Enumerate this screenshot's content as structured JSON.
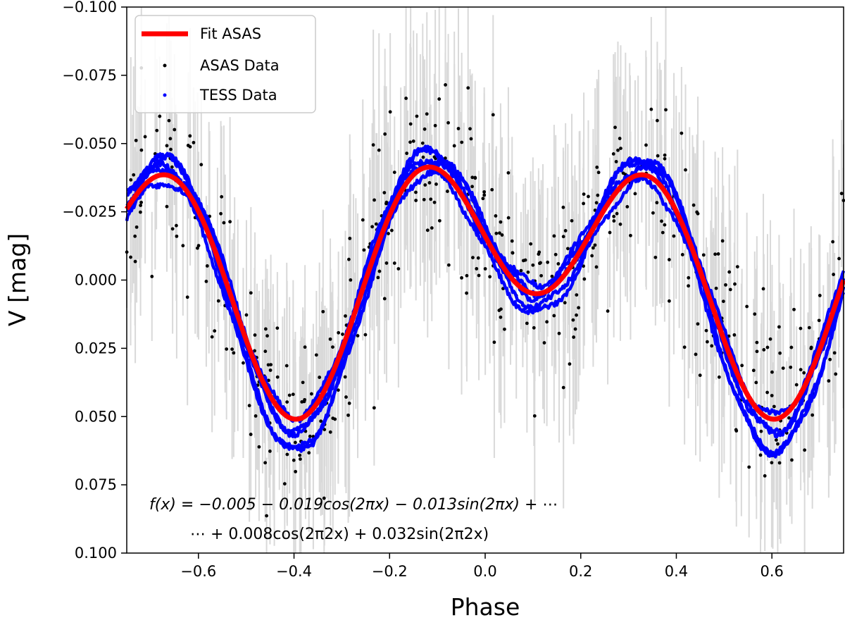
{
  "chart_data": {
    "type": "scatter",
    "title": "",
    "xlabel": "Phase",
    "ylabel": "V [mag]",
    "xlim": [
      -0.75,
      0.75
    ],
    "ylim": [
      0.1,
      -0.1
    ],
    "y_inverted": true,
    "x_ticks": [
      -0.6,
      -0.4,
      -0.2,
      0.0,
      0.2,
      0.4,
      0.6
    ],
    "x_tick_labels": [
      "−0.6",
      "−0.4",
      "−0.2",
      "0.0",
      "0.2",
      "0.4",
      "0.6"
    ],
    "y_ticks": [
      -0.1,
      -0.075,
      -0.05,
      -0.025,
      0.0,
      0.025,
      0.05,
      0.075,
      0.1
    ],
    "y_tick_labels": [
      "−0.100",
      "−0.075",
      "−0.050",
      "−0.025",
      "0.000",
      "0.025",
      "0.050",
      "0.075",
      "0.100"
    ],
    "legend_position": "top-left",
    "legend": [
      {
        "label": "Fit ASAS",
        "kind": "line",
        "color": "#ff0000"
      },
      {
        "label": "ASAS Data",
        "kind": "marker",
        "color": "#000000"
      },
      {
        "label": "TESS Data",
        "kind": "marker",
        "color": "#0000ff"
      }
    ],
    "fit": {
      "name": "Fit ASAS",
      "color": "#ff0000",
      "c0": -0.005,
      "a1": -0.019,
      "b1": -0.013,
      "a2": 0.008,
      "b2": 0.032
    },
    "asas_errorbar_color": "#d9d9d9",
    "tess_offsets": [
      -0.004,
      -0.002,
      0.0,
      0.003,
      0.006
    ],
    "tess_amplitude_scale": [
      1.05,
      1.12,
      1.08,
      1.15,
      1.1
    ],
    "formula_line1": "f(x) = −0.005 − 0.019cos(2πx) − 0.013sin(2πx) + ⋯",
    "formula_line2": "⋯ + 0.008cos(2π2x) + 0.032sin(2π2x)"
  }
}
